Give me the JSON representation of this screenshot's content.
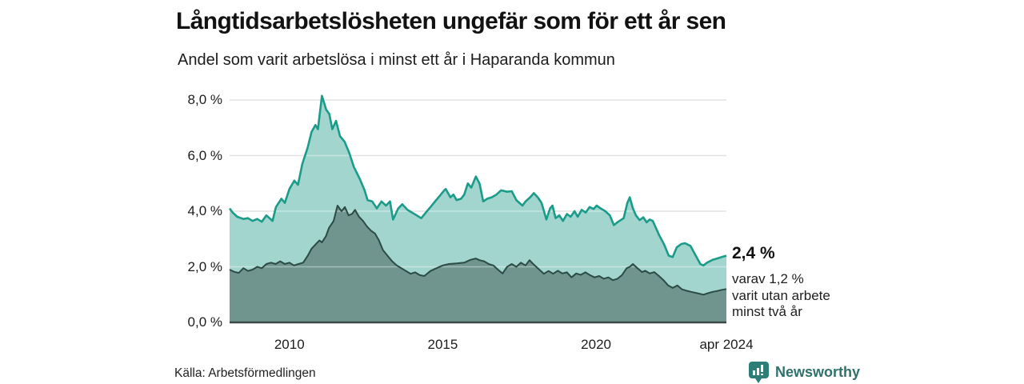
{
  "header": {
    "title": "Långtidsarbetslösheten ungefär som för ett år sen",
    "subtitle": "Andel som varit arbetslösa i minst ett år i Haparanda kommun"
  },
  "chart_data": {
    "type": "area",
    "title": "Långtidsarbetslösheten ungefär som för ett år sen",
    "subtitle": "Andel som varit arbetslösa i minst ett år i Haparanda kommun",
    "unit": "%",
    "grid": true,
    "legend": "none",
    "x_axis": {
      "range": [
        2008.05,
        2024.25
      ],
      "ticks": [
        {
          "year": 2010,
          "label": "2010"
        },
        {
          "year": 2015,
          "label": "2015"
        },
        {
          "year": 2020,
          "label": "2020"
        },
        {
          "year": 2024.25,
          "label": "apr 2024"
        }
      ]
    },
    "y_axis": {
      "range": [
        0,
        8
      ],
      "ticks": [
        {
          "value": 0,
          "label": "0,0 %"
        },
        {
          "value": 2,
          "label": "2,0 %"
        },
        {
          "value": 4,
          "label": "4,0 %"
        },
        {
          "value": 6,
          "label": "6,0 %"
        },
        {
          "value": 8,
          "label": "8,0 %"
        }
      ],
      "gridlines": [
        2,
        4,
        6,
        8
      ]
    },
    "series": [
      {
        "name": "Arbetslösa minst ett år",
        "stroke": "#1b9c8a",
        "fill": "#a3d5cf",
        "last_value": 2.4,
        "points": [
          [
            2008.05,
            4.1
          ],
          [
            2008.15,
            3.95
          ],
          [
            2008.3,
            3.8
          ],
          [
            2008.5,
            3.72
          ],
          [
            2008.65,
            3.75
          ],
          [
            2008.8,
            3.65
          ],
          [
            2008.95,
            3.72
          ],
          [
            2009.1,
            3.62
          ],
          [
            2009.25,
            3.85
          ],
          [
            2009.45,
            3.65
          ],
          [
            2009.56,
            4.15
          ],
          [
            2009.74,
            4.45
          ],
          [
            2009.85,
            4.3
          ],
          [
            2010.0,
            4.8
          ],
          [
            2010.16,
            5.1
          ],
          [
            2010.28,
            4.95
          ],
          [
            2010.42,
            5.7
          ],
          [
            2010.6,
            6.3
          ],
          [
            2010.72,
            6.85
          ],
          [
            2010.85,
            7.1
          ],
          [
            2010.93,
            6.95
          ],
          [
            2011.06,
            8.15
          ],
          [
            2011.2,
            7.65
          ],
          [
            2011.3,
            7.5
          ],
          [
            2011.4,
            6.95
          ],
          [
            2011.52,
            7.25
          ],
          [
            2011.65,
            6.7
          ],
          [
            2011.8,
            6.5
          ],
          [
            2011.95,
            6.1
          ],
          [
            2012.1,
            5.6
          ],
          [
            2012.3,
            5.15
          ],
          [
            2012.45,
            4.75
          ],
          [
            2012.55,
            4.4
          ],
          [
            2012.7,
            4.35
          ],
          [
            2012.85,
            4.1
          ],
          [
            2013.0,
            4.35
          ],
          [
            2013.15,
            4.2
          ],
          [
            2013.28,
            4.35
          ],
          [
            2013.38,
            3.7
          ],
          [
            2013.55,
            4.1
          ],
          [
            2013.68,
            4.25
          ],
          [
            2013.85,
            4.05
          ],
          [
            2014.0,
            3.95
          ],
          [
            2014.15,
            3.85
          ],
          [
            2014.3,
            3.75
          ],
          [
            2014.45,
            3.95
          ],
          [
            2014.6,
            4.15
          ],
          [
            2014.75,
            4.35
          ],
          [
            2014.9,
            4.55
          ],
          [
            2015.05,
            4.75
          ],
          [
            2015.1,
            4.8
          ],
          [
            2015.25,
            4.5
          ],
          [
            2015.35,
            4.6
          ],
          [
            2015.45,
            4.4
          ],
          [
            2015.6,
            4.45
          ],
          [
            2015.7,
            4.6
          ],
          [
            2015.82,
            5.0
          ],
          [
            2015.93,
            4.85
          ],
          [
            2016.08,
            5.25
          ],
          [
            2016.2,
            5.0
          ],
          [
            2016.32,
            4.35
          ],
          [
            2016.45,
            4.45
          ],
          [
            2016.6,
            4.5
          ],
          [
            2016.75,
            4.6
          ],
          [
            2016.9,
            4.75
          ],
          [
            2017.1,
            4.7
          ],
          [
            2017.25,
            4.72
          ],
          [
            2017.4,
            4.4
          ],
          [
            2017.5,
            4.3
          ],
          [
            2017.6,
            4.2
          ],
          [
            2017.7,
            4.35
          ],
          [
            2017.85,
            4.5
          ],
          [
            2017.97,
            4.65
          ],
          [
            2018.1,
            4.5
          ],
          [
            2018.22,
            4.3
          ],
          [
            2018.38,
            3.7
          ],
          [
            2018.5,
            4.1
          ],
          [
            2018.58,
            4.2
          ],
          [
            2018.68,
            3.75
          ],
          [
            2018.8,
            3.85
          ],
          [
            2018.92,
            3.65
          ],
          [
            2019.05,
            3.9
          ],
          [
            2019.17,
            3.8
          ],
          [
            2019.3,
            4.0
          ],
          [
            2019.4,
            3.8
          ],
          [
            2019.53,
            4.05
          ],
          [
            2019.66,
            3.95
          ],
          [
            2019.79,
            4.15
          ],
          [
            2019.92,
            4.08
          ],
          [
            2020.02,
            4.2
          ],
          [
            2020.15,
            4.1
          ],
          [
            2020.3,
            4.0
          ],
          [
            2020.45,
            3.85
          ],
          [
            2020.58,
            3.5
          ],
          [
            2020.72,
            3.62
          ],
          [
            2020.9,
            3.75
          ],
          [
            2021.02,
            4.3
          ],
          [
            2021.1,
            4.5
          ],
          [
            2021.2,
            4.1
          ],
          [
            2021.3,
            3.85
          ],
          [
            2021.42,
            3.68
          ],
          [
            2021.54,
            3.78
          ],
          [
            2021.65,
            3.6
          ],
          [
            2021.75,
            3.7
          ],
          [
            2021.85,
            3.65
          ],
          [
            2022.05,
            3.15
          ],
          [
            2022.22,
            2.8
          ],
          [
            2022.37,
            2.4
          ],
          [
            2022.5,
            2.35
          ],
          [
            2022.63,
            2.7
          ],
          [
            2022.78,
            2.82
          ],
          [
            2022.9,
            2.85
          ],
          [
            2023.08,
            2.75
          ],
          [
            2023.2,
            2.5
          ],
          [
            2023.4,
            2.1
          ],
          [
            2023.5,
            2.05
          ],
          [
            2023.62,
            2.15
          ],
          [
            2023.8,
            2.25
          ],
          [
            2023.95,
            2.3
          ],
          [
            2024.1,
            2.35
          ],
          [
            2024.25,
            2.4
          ]
        ]
      },
      {
        "name": "Arbetslösa minst två år",
        "stroke": "#2c4b45",
        "fill": "#6f958e",
        "last_value": 1.2,
        "points": [
          [
            2008.05,
            1.9
          ],
          [
            2008.2,
            1.82
          ],
          [
            2008.35,
            1.78
          ],
          [
            2008.5,
            1.95
          ],
          [
            2008.65,
            1.85
          ],
          [
            2008.8,
            1.9
          ],
          [
            2008.95,
            2.0
          ],
          [
            2009.1,
            1.95
          ],
          [
            2009.25,
            2.1
          ],
          [
            2009.4,
            2.15
          ],
          [
            2009.55,
            2.1
          ],
          [
            2009.7,
            2.2
          ],
          [
            2009.85,
            2.1
          ],
          [
            2010.0,
            2.15
          ],
          [
            2010.15,
            2.05
          ],
          [
            2010.3,
            2.1
          ],
          [
            2010.45,
            2.15
          ],
          [
            2010.6,
            2.4
          ],
          [
            2010.72,
            2.65
          ],
          [
            2010.85,
            2.8
          ],
          [
            2010.98,
            2.95
          ],
          [
            2011.06,
            2.88
          ],
          [
            2011.19,
            3.1
          ],
          [
            2011.29,
            3.4
          ],
          [
            2011.44,
            3.65
          ],
          [
            2011.57,
            4.2
          ],
          [
            2011.7,
            4.0
          ],
          [
            2011.81,
            4.15
          ],
          [
            2011.93,
            3.85
          ],
          [
            2012.04,
            3.9
          ],
          [
            2012.14,
            4.05
          ],
          [
            2012.27,
            3.8
          ],
          [
            2012.4,
            3.65
          ],
          [
            2012.53,
            3.45
          ],
          [
            2012.66,
            3.3
          ],
          [
            2012.79,
            3.2
          ],
          [
            2012.92,
            2.95
          ],
          [
            2013.05,
            2.6
          ],
          [
            2013.2,
            2.4
          ],
          [
            2013.35,
            2.2
          ],
          [
            2013.5,
            2.05
          ],
          [
            2013.65,
            1.95
          ],
          [
            2013.8,
            1.85
          ],
          [
            2013.95,
            1.75
          ],
          [
            2014.1,
            1.8
          ],
          [
            2014.25,
            1.7
          ],
          [
            2014.4,
            1.67
          ],
          [
            2014.6,
            1.85
          ],
          [
            2014.8,
            1.95
          ],
          [
            2015.0,
            2.05
          ],
          [
            2015.2,
            2.1
          ],
          [
            2015.45,
            2.12
          ],
          [
            2015.7,
            2.15
          ],
          [
            2015.9,
            2.25
          ],
          [
            2016.08,
            2.3
          ],
          [
            2016.2,
            2.24
          ],
          [
            2016.35,
            2.2
          ],
          [
            2016.5,
            2.1
          ],
          [
            2016.65,
            2.05
          ],
          [
            2016.8,
            1.9
          ],
          [
            2016.95,
            1.76
          ],
          [
            2017.1,
            2.0
          ],
          [
            2017.25,
            2.1
          ],
          [
            2017.4,
            2.0
          ],
          [
            2017.55,
            2.15
          ],
          [
            2017.7,
            2.05
          ],
          [
            2017.83,
            2.24
          ],
          [
            2017.95,
            2.1
          ],
          [
            2018.1,
            1.95
          ],
          [
            2018.3,
            1.75
          ],
          [
            2018.45,
            1.85
          ],
          [
            2018.6,
            1.75
          ],
          [
            2018.75,
            1.86
          ],
          [
            2018.9,
            1.76
          ],
          [
            2019.05,
            1.8
          ],
          [
            2019.2,
            1.62
          ],
          [
            2019.35,
            1.76
          ],
          [
            2019.5,
            1.71
          ],
          [
            2019.65,
            1.8
          ],
          [
            2019.8,
            1.7
          ],
          [
            2019.95,
            1.62
          ],
          [
            2020.1,
            1.67
          ],
          [
            2020.25,
            1.57
          ],
          [
            2020.4,
            1.62
          ],
          [
            2020.55,
            1.52
          ],
          [
            2020.7,
            1.57
          ],
          [
            2020.85,
            1.71
          ],
          [
            2021.0,
            1.95
          ],
          [
            2021.1,
            2.0
          ],
          [
            2021.2,
            2.1
          ],
          [
            2021.35,
            1.95
          ],
          [
            2021.5,
            1.81
          ],
          [
            2021.6,
            1.86
          ],
          [
            2021.75,
            1.76
          ],
          [
            2021.9,
            1.81
          ],
          [
            2022.05,
            1.67
          ],
          [
            2022.2,
            1.52
          ],
          [
            2022.35,
            1.33
          ],
          [
            2022.5,
            1.24
          ],
          [
            2022.65,
            1.33
          ],
          [
            2022.8,
            1.19
          ],
          [
            2022.95,
            1.14
          ],
          [
            2023.1,
            1.1
          ],
          [
            2023.3,
            1.05
          ],
          [
            2023.5,
            1.0
          ],
          [
            2023.65,
            1.05
          ],
          [
            2023.8,
            1.1
          ],
          [
            2023.95,
            1.13
          ],
          [
            2024.1,
            1.17
          ],
          [
            2024.25,
            1.2
          ]
        ]
      }
    ],
    "annotation": {
      "value": "2,4 %",
      "lines": [
        "varav 1,2 %",
        "varit utan arbete",
        "minst två år"
      ]
    },
    "colors": {
      "gridline": "#e3e3e3",
      "baseline": "#3c4946"
    }
  },
  "footer": {
    "source": "Källa: Arbetsförmedlingen",
    "brand": "Newsworthy",
    "brand_color": "#2f716b",
    "brand_icon_color": "#2c7e76"
  }
}
